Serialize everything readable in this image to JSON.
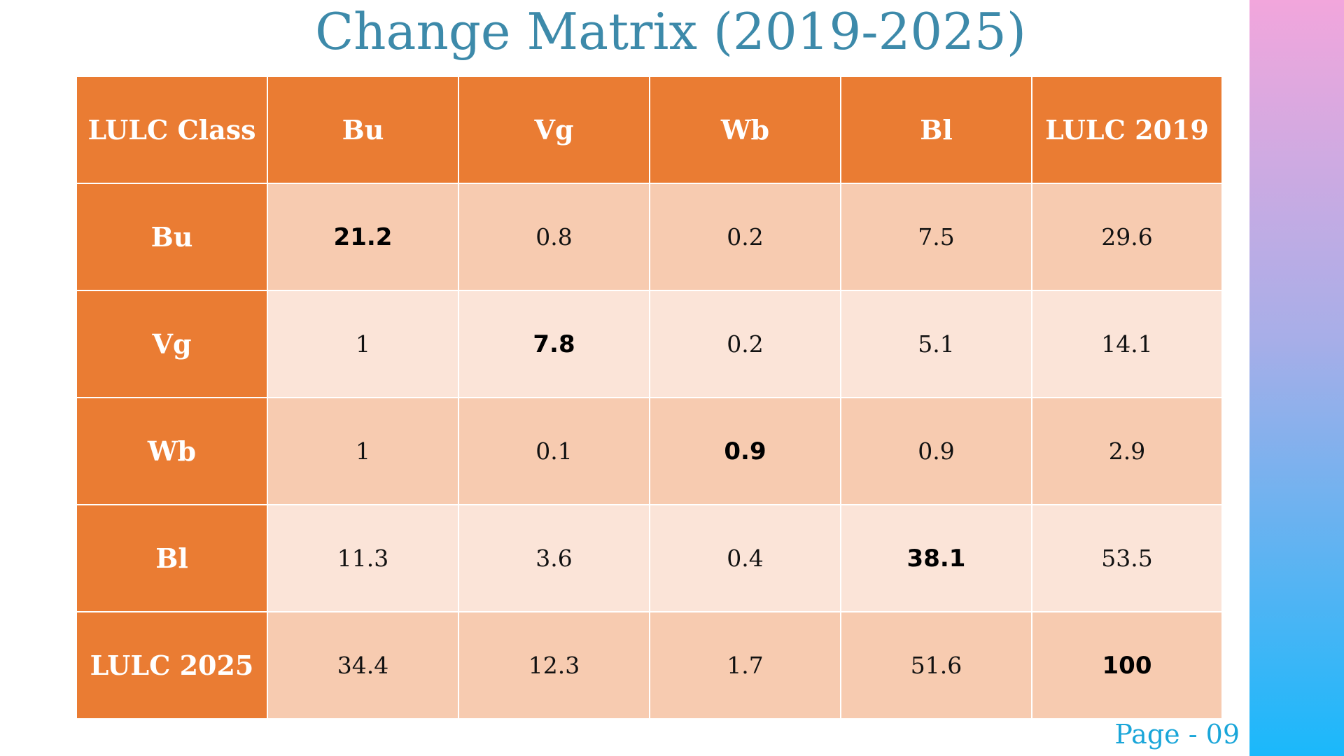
{
  "title": "Change Matrix (2019-2025)",
  "table": {
    "headers": [
      "LULC Class",
      "Bu",
      "Vg",
      "Wb",
      "Bl",
      "LULC 2019"
    ],
    "rows": [
      {
        "label": "Bu",
        "cells": [
          "21.2",
          "0.8",
          "0.2",
          "7.5",
          "29.6"
        ]
      },
      {
        "label": "Vg",
        "cells": [
          "1",
          "7.8",
          "0.2",
          "5.1",
          "14.1"
        ]
      },
      {
        "label": "Wb",
        "cells": [
          "1",
          "0.1",
          "0.9",
          "0.9",
          "2.9"
        ]
      },
      {
        "label": "Bl",
        "cells": [
          "11.3",
          "3.6",
          "0.4",
          "38.1",
          "53.5"
        ]
      },
      {
        "label": "LULC 2025",
        "cells": [
          "34.4",
          "12.3",
          "1.7",
          "51.6",
          "100"
        ]
      }
    ]
  },
  "page_label": "Page - 09",
  "colors": {
    "title": "#3d8aaa",
    "header_bg": "#ea7c33",
    "row_dark": "#f7cbb0",
    "row_light": "#fbe4d8",
    "page_label": "#1aa6d9",
    "sidebar_gradient": [
      "#f2a6dc",
      "#a7aee8",
      "#1ab8fb"
    ]
  }
}
